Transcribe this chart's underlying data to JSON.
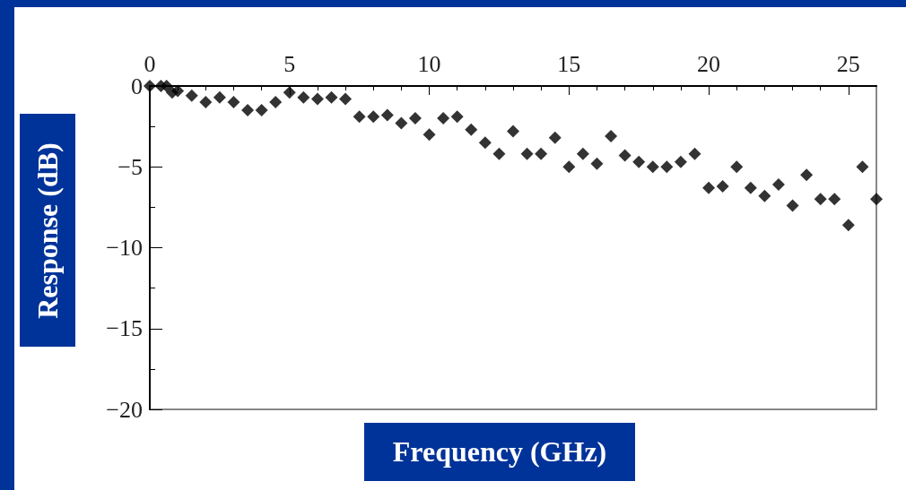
{
  "chart_data": {
    "type": "scatter",
    "xlabel": "Frequency (GHz)",
    "ylabel": "Response (dB)",
    "x": [
      0,
      0.4,
      0.6,
      0.8,
      1.0,
      1.5,
      2.0,
      2.5,
      3.0,
      3.5,
      4.0,
      4.5,
      5.0,
      5.5,
      6.0,
      6.5,
      7.0,
      7.5,
      8.0,
      8.5,
      9.0,
      9.5,
      10,
      10.5,
      11,
      11.5,
      12,
      12.5,
      13,
      13.5,
      14,
      14.5,
      15,
      15.5,
      16,
      16.5,
      17,
      17.5,
      18,
      18.5,
      19,
      19.5,
      20,
      20.5,
      21,
      21.5,
      22,
      22.5,
      23,
      23.5,
      24,
      24.5,
      25,
      25.5,
      26
    ],
    "series": [
      {
        "color": "#000000",
        "values": [
          0,
          0,
          0,
          -0.4,
          -0.3,
          -0.6,
          -1.0,
          -0.7,
          -1.0,
          -1.5,
          -1.5,
          -1.0,
          -0.4,
          -0.7,
          -0.8,
          -0.7,
          -0.8,
          -1.9,
          -1.9,
          -1.8,
          -2.3,
          -2.0,
          -3.0,
          -2.0,
          -1.9,
          -2.7,
          -3.5,
          -4.2,
          -2.8,
          -4.2,
          -4.2,
          -3.2,
          -5.0,
          -4.2,
          -4.8,
          -3.1,
          -4.3,
          -4.7,
          -5.0,
          -5.0,
          -4.7,
          -4.2,
          -6.3,
          -6.2,
          -5.0,
          -6.3,
          -6.8,
          -6.1,
          -7.4,
          -5.5,
          -7.0,
          -7.0,
          -8.6,
          -5.0,
          -7.0
        ]
      }
    ],
    "xlim": [
      0,
      26
    ],
    "xticks": [
      0,
      5,
      10,
      15,
      20,
      25
    ],
    "ylim": [
      -20,
      0
    ],
    "yticks": [
      -20,
      -15,
      -10,
      -5,
      0
    ],
    "marker": "diamond",
    "grid": false
  }
}
